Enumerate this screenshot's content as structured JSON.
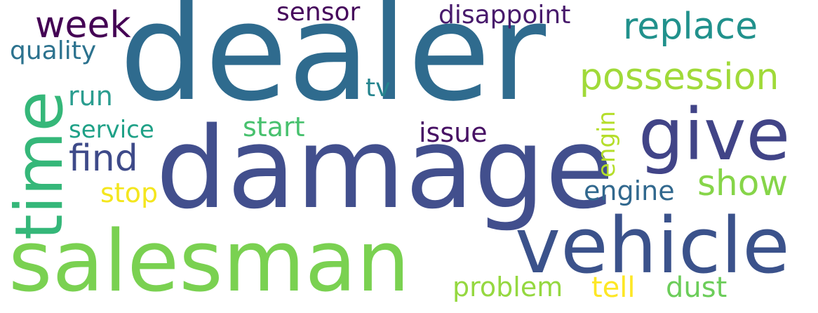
{
  "cloud": {
    "words": {
      "dealer": "dealer",
      "damage": "damage",
      "salesman": "salesman",
      "vehicle": "vehicle",
      "give": "give",
      "time": "time",
      "possession": "possession",
      "replace": "replace",
      "week": "week",
      "find": "find",
      "show": "show",
      "sensor": "sensor",
      "disappoint": "disappoint",
      "quality": "quality",
      "run": "run",
      "tv": "tv",
      "service": "service",
      "start": "start",
      "issue": "issue",
      "engin": "engin",
      "engine": "engine",
      "stop": "stop",
      "problem": "problem",
      "tell": "tell",
      "dust": "dust"
    },
    "colors": {
      "dealer": "#2f6b8e",
      "damage": "#424f8d",
      "salesman": "#7ad151",
      "vehicle": "#3b528b",
      "give": "#414487",
      "time": "#35b779",
      "possession": "#a0da39",
      "replace": "#21918c",
      "week": "#440154",
      "find": "#3e4a89",
      "show": "#86d549",
      "sensor": "#46085c",
      "disappoint": "#481a6c",
      "quality": "#2c728e",
      "run": "#2a9d8f",
      "tv": "#25848e",
      "service": "#1fa187",
      "start": "#48c16e",
      "issue": "#471164",
      "engin": "#b5de2b",
      "engine": "#31688e",
      "stop": "#f4e61e",
      "problem": "#95d840",
      "tell": "#fde725",
      "dust": "#6ccd5a"
    },
    "background": "#ffffff"
  }
}
